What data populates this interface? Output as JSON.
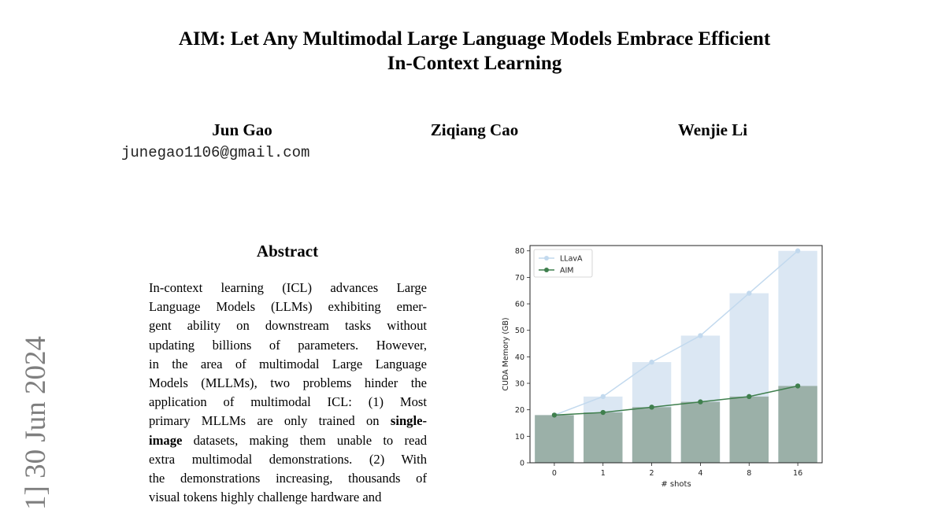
{
  "paper": {
    "title_line1": "AIM: Let Any Multimodal Large Language Models Embrace Efficient",
    "title_line2": "In-Context Learning",
    "authors": [
      {
        "name": "Jun Gao",
        "email": "junegao1106@gmail.com"
      },
      {
        "name": "Ziqiang Cao"
      },
      {
        "name": "Wenjie Li"
      }
    ],
    "arxiv_stamp": "1]  30 Jun 2024",
    "abstract_heading": "Abstract",
    "abstract_lines": [
      {
        "text": "In-context learning (ICL) advances Large"
      },
      {
        "text": "Language Models (LLMs) exhibiting emer-"
      },
      {
        "text": "gent ability on downstream tasks without"
      },
      {
        "text": "updating billions of parameters.  However,"
      },
      {
        "text": "in the area of multimodal Large Language"
      },
      {
        "text": "Models (MLLMs), two problems hinder the"
      },
      {
        "text": "application of multimodal ICL: (1) Most"
      },
      {
        "text": "primary MLLMs are only trained on ",
        "bold": "single-"
      },
      {
        "bold_prefix": "image",
        "text": " datasets, making them unable to read"
      },
      {
        "text": "extra multimodal demonstrations. (2) With"
      },
      {
        "text": "the demonstrations increasing, thousands of"
      },
      {
        "text": "visual tokens highly challenge hardware and"
      }
    ]
  },
  "chart_data": {
    "type": "bar",
    "categories": [
      "0",
      "1",
      "2",
      "4",
      "8",
      "16"
    ],
    "xlabel": "# shots",
    "ylabel": "CUDA Memory (GB)",
    "ylim": [
      0,
      82
    ],
    "yticks": [
      0,
      10,
      20,
      30,
      40,
      50,
      60,
      70,
      80
    ],
    "legend_position": "top-left",
    "series": [
      {
        "name": "LLavA",
        "values": [
          18,
          25,
          38,
          48,
          64,
          80
        ],
        "bar_color": "#dbe7f3",
        "line_color": "#c2d9ee"
      },
      {
        "name": "AIM",
        "values": [
          18,
          19,
          21,
          23,
          25,
          29
        ],
        "bar_color": "#9bb0a8",
        "line_color": "#3f7f4d"
      }
    ]
  }
}
